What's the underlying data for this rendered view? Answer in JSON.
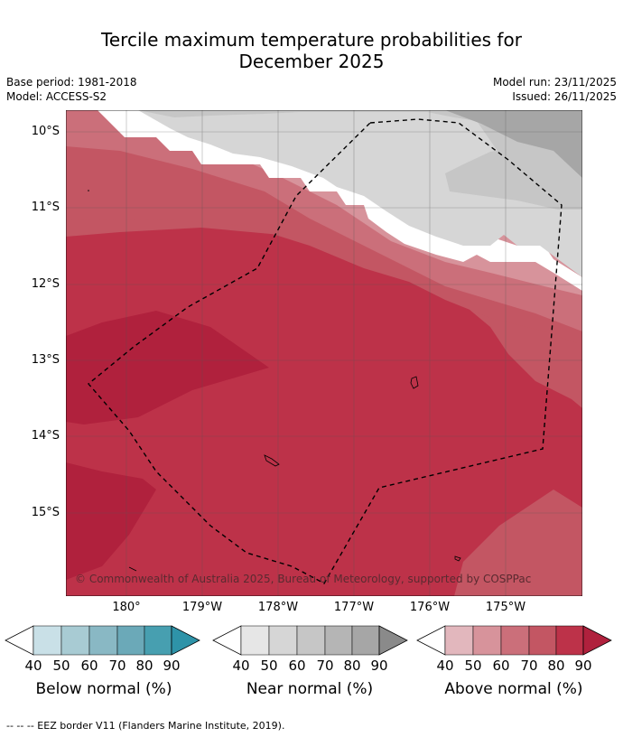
{
  "title_line1": "Tercile maximum temperature probabilities for",
  "title_line2": "December 2025",
  "base_period": "Base period: 1981-2018",
  "model": "Model: ACCESS-S2",
  "model_run": "Model run: 23/11/2025",
  "issued": "Issued: 26/11/2025",
  "copyright": "© Commonwealth of Australia 2025, Bureau of Meteorology, supported by COSPPac",
  "lat_labels": [
    "10°S",
    "11°S",
    "12°S",
    "13°S",
    "14°S",
    "15°S"
  ],
  "lon_labels": [
    "180°",
    "179°W",
    "178°W",
    "177°W",
    "176°W",
    "175°W"
  ],
  "colorbars": [
    {
      "label": "Below normal (%)",
      "ticks": [
        "40",
        "50",
        "60",
        "70",
        "80",
        "90"
      ],
      "colors": [
        "#c9e0e7",
        "#a8cbd3",
        "#89b8c4",
        "#6ba9b8",
        "#479fb0",
        "#2e93a8"
      ]
    },
    {
      "label": "Near normal (%)",
      "ticks": [
        "40",
        "50",
        "60",
        "70",
        "80",
        "90"
      ],
      "colors": [
        "#e6e6e6",
        "#d6d6d6",
        "#c6c6c6",
        "#b5b5b5",
        "#a6a6a6",
        "#8a8a8a"
      ]
    },
    {
      "label": "Above normal (%)",
      "ticks": [
        "40",
        "50",
        "60",
        "70",
        "80",
        "90"
      ],
      "colors": [
        "#e2b7bd",
        "#d7939b",
        "#cb6f7a",
        "#c35663",
        "#bd3249",
        "#b0213d"
      ]
    }
  ],
  "footer": "--  --  -- EEZ border V11 (Flanders Marine Institute, 2019)."
}
